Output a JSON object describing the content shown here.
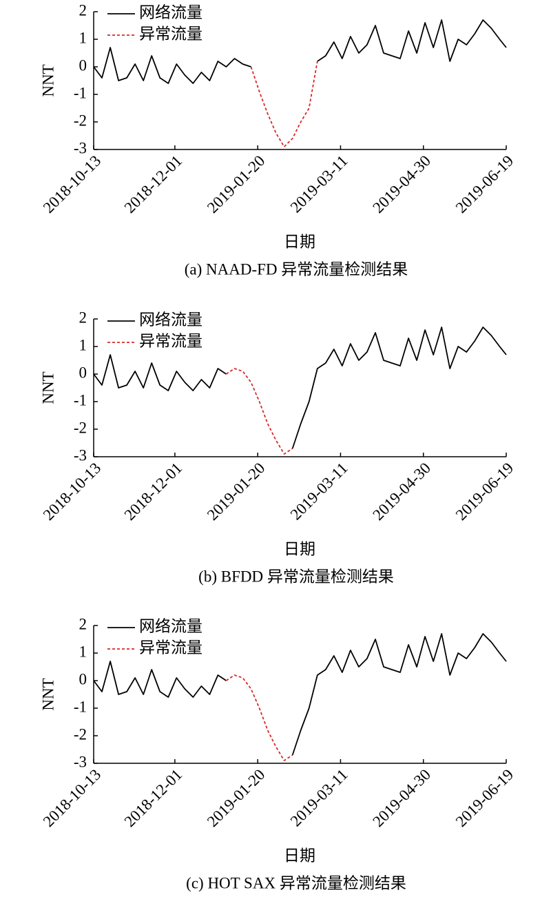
{
  "chart_data": [
    {
      "type": "line",
      "title": "(a) NAAD-FD 异常流量检测结果",
      "xlabel": "日期",
      "ylabel": "NNT",
      "x": [
        "2018-10-13",
        "2018-10-18",
        "2018-10-23",
        "2018-10-28",
        "2018-11-02",
        "2018-11-07",
        "2018-11-12",
        "2018-11-17",
        "2018-11-22",
        "2018-11-27",
        "2018-12-02",
        "2018-12-07",
        "2018-12-12",
        "2018-12-17",
        "2018-12-22",
        "2018-12-27",
        "2019-01-01",
        "2019-01-06",
        "2019-01-11",
        "2019-01-16",
        "2019-01-21",
        "2019-01-26",
        "2019-01-31",
        "2019-02-05",
        "2019-02-10",
        "2019-02-15",
        "2019-02-20",
        "2019-02-25",
        "2019-03-02",
        "2019-03-07",
        "2019-03-12",
        "2019-03-17",
        "2019-03-22",
        "2019-03-27",
        "2019-04-01",
        "2019-04-06",
        "2019-04-11",
        "2019-04-16",
        "2019-04-21",
        "2019-04-26",
        "2019-05-01",
        "2019-05-06",
        "2019-05-11",
        "2019-05-16",
        "2019-05-21",
        "2019-05-26",
        "2019-05-31",
        "2019-06-05",
        "2019-06-10",
        "2019-06-15",
        "2019-06-19"
      ],
      "xlim": [
        "2018-10-13",
        "2019-06-19"
      ],
      "xticks": [
        "2018-10-13",
        "2018-12-01",
        "2019-01-20",
        "2019-03-11",
        "2019-04-30",
        "2019-06-19"
      ],
      "ylim": [
        -3,
        2
      ],
      "yticks": [
        -3,
        -2,
        -1,
        0,
        1,
        2
      ],
      "legend": "upper left",
      "series": [
        {
          "name": "网络流量",
          "color": "#000000",
          "linestyle": "solid",
          "values": [
            0.0,
            -0.4,
            0.7,
            -0.5,
            -0.4,
            0.1,
            -0.5,
            0.4,
            -0.4,
            -0.6,
            0.1,
            -0.3,
            -0.6,
            -0.2,
            -0.5,
            0.2,
            0.0,
            0.3,
            0.1,
            0.0,
            null,
            null,
            null,
            null,
            null,
            null,
            null,
            0.2,
            0.4,
            0.9,
            0.3,
            1.1,
            0.5,
            0.8,
            1.5,
            0.5,
            0.4,
            0.3,
            1.3,
            0.5,
            1.6,
            0.7,
            1.7,
            0.2,
            1.0,
            0.8,
            1.2,
            1.7,
            1.4,
            1.0,
            0.7
          ]
        },
        {
          "name": "异常流量",
          "color": "#d62728",
          "linestyle": "dashed",
          "values": [
            null,
            null,
            null,
            null,
            null,
            null,
            null,
            null,
            null,
            null,
            null,
            null,
            null,
            null,
            null,
            null,
            null,
            null,
            null,
            0.0,
            -0.9,
            -1.7,
            -2.4,
            -2.9,
            -2.6,
            -2.0,
            -1.5,
            0.2,
            null,
            null,
            null,
            null,
            null,
            null,
            null,
            null,
            null,
            null,
            null,
            null,
            null,
            null,
            null,
            null,
            null,
            null,
            null,
            null,
            null,
            null,
            null
          ]
        }
      ]
    },
    {
      "type": "line",
      "title": "(b) BFDD 异常流量检测结果",
      "xlabel": "日期",
      "ylabel": "NNT",
      "x": [
        "2018-10-13",
        "2018-10-18",
        "2018-10-23",
        "2018-10-28",
        "2018-11-02",
        "2018-11-07",
        "2018-11-12",
        "2018-11-17",
        "2018-11-22",
        "2018-11-27",
        "2018-12-02",
        "2018-12-07",
        "2018-12-12",
        "2018-12-17",
        "2018-12-22",
        "2018-12-27",
        "2019-01-01",
        "2019-01-06",
        "2019-01-11",
        "2019-01-16",
        "2019-01-21",
        "2019-01-26",
        "2019-01-31",
        "2019-02-05",
        "2019-02-10",
        "2019-02-15",
        "2019-02-20",
        "2019-02-25",
        "2019-03-02",
        "2019-03-07",
        "2019-03-12",
        "2019-03-17",
        "2019-03-22",
        "2019-03-27",
        "2019-04-01",
        "2019-04-06",
        "2019-04-11",
        "2019-04-16",
        "2019-04-21",
        "2019-04-26",
        "2019-05-01",
        "2019-05-06",
        "2019-05-11",
        "2019-05-16",
        "2019-05-21",
        "2019-05-26",
        "2019-05-31",
        "2019-06-05",
        "2019-06-10",
        "2019-06-15",
        "2019-06-19"
      ],
      "xlim": [
        "2018-10-13",
        "2019-06-19"
      ],
      "xticks": [
        "2018-10-13",
        "2018-12-01",
        "2019-01-20",
        "2019-03-11",
        "2019-04-30",
        "2019-06-19"
      ],
      "ylim": [
        -3,
        2
      ],
      "yticks": [
        -3,
        -2,
        -1,
        0,
        1,
        2
      ],
      "legend": "upper left",
      "series": [
        {
          "name": "网络流量",
          "color": "#000000",
          "linestyle": "solid",
          "values": [
            0.0,
            -0.4,
            0.7,
            -0.5,
            -0.4,
            0.1,
            -0.5,
            0.4,
            -0.4,
            -0.6,
            0.1,
            -0.3,
            -0.6,
            -0.2,
            -0.5,
            0.2,
            0.0,
            null,
            null,
            null,
            null,
            null,
            null,
            null,
            -2.7,
            -1.8,
            -1.0,
            0.2,
            0.4,
            0.9,
            0.3,
            1.1,
            0.5,
            0.8,
            1.5,
            0.5,
            0.4,
            0.3,
            1.3,
            0.5,
            1.6,
            0.7,
            1.7,
            0.2,
            1.0,
            0.8,
            1.2,
            1.7,
            1.4,
            1.0,
            0.7
          ]
        },
        {
          "name": "异常流量",
          "color": "#d62728",
          "linestyle": "dashed",
          "values": [
            null,
            null,
            null,
            null,
            null,
            null,
            null,
            null,
            null,
            null,
            null,
            null,
            null,
            null,
            null,
            null,
            0.0,
            0.2,
            0.1,
            -0.3,
            -1.0,
            -1.8,
            -2.4,
            -2.9,
            -2.7,
            null,
            null,
            null,
            null,
            null,
            null,
            null,
            null,
            null,
            null,
            null,
            null,
            null,
            null,
            null,
            null,
            null,
            null,
            null,
            null,
            null,
            null,
            null,
            null,
            null,
            null
          ]
        }
      ]
    },
    {
      "type": "line",
      "title": "(c) HOT SAX 异常流量检测结果",
      "xlabel": "日期",
      "ylabel": "NNT",
      "x": [
        "2018-10-13",
        "2018-10-18",
        "2018-10-23",
        "2018-10-28",
        "2018-11-02",
        "2018-11-07",
        "2018-11-12",
        "2018-11-17",
        "2018-11-22",
        "2018-11-27",
        "2018-12-02",
        "2018-12-07",
        "2018-12-12",
        "2018-12-17",
        "2018-12-22",
        "2018-12-27",
        "2019-01-01",
        "2019-01-06",
        "2019-01-11",
        "2019-01-16",
        "2019-01-21",
        "2019-01-26",
        "2019-01-31",
        "2019-02-05",
        "2019-02-10",
        "2019-02-15",
        "2019-02-20",
        "2019-02-25",
        "2019-03-02",
        "2019-03-07",
        "2019-03-12",
        "2019-03-17",
        "2019-03-22",
        "2019-03-27",
        "2019-04-01",
        "2019-04-06",
        "2019-04-11",
        "2019-04-16",
        "2019-04-21",
        "2019-04-26",
        "2019-05-01",
        "2019-05-06",
        "2019-05-11",
        "2019-05-16",
        "2019-05-21",
        "2019-05-26",
        "2019-05-31",
        "2019-06-05",
        "2019-06-10",
        "2019-06-15",
        "2019-06-19"
      ],
      "xlim": [
        "2018-10-13",
        "2019-06-19"
      ],
      "xticks": [
        "2018-10-13",
        "2018-12-01",
        "2019-01-20",
        "2019-03-11",
        "2019-04-30",
        "2019-06-19"
      ],
      "ylim": [
        -3,
        2
      ],
      "yticks": [
        -3,
        -2,
        -1,
        0,
        1,
        2
      ],
      "legend": "upper left",
      "series": [
        {
          "name": "网络流量",
          "color": "#000000",
          "linestyle": "solid",
          "values": [
            0.0,
            -0.4,
            0.7,
            -0.5,
            -0.4,
            0.1,
            -0.5,
            0.4,
            -0.4,
            -0.6,
            0.1,
            -0.3,
            -0.6,
            -0.2,
            -0.5,
            0.2,
            0.0,
            null,
            null,
            null,
            null,
            null,
            null,
            null,
            -2.7,
            -1.8,
            -1.0,
            0.2,
            0.4,
            0.9,
            0.3,
            1.1,
            0.5,
            0.8,
            1.5,
            0.5,
            0.4,
            0.3,
            1.3,
            0.5,
            1.6,
            0.7,
            1.7,
            0.2,
            1.0,
            0.8,
            1.2,
            1.7,
            1.4,
            1.0,
            0.7
          ]
        },
        {
          "name": "异常流量",
          "color": "#d62728",
          "linestyle": "dashed",
          "values": [
            null,
            null,
            null,
            null,
            null,
            null,
            null,
            null,
            null,
            null,
            null,
            null,
            null,
            null,
            null,
            null,
            0.0,
            0.2,
            0.1,
            -0.3,
            -1.0,
            -1.8,
            -2.4,
            -2.9,
            -2.7,
            null,
            null,
            null,
            null,
            null,
            null,
            null,
            null,
            null,
            null,
            null,
            null,
            null,
            null,
            null,
            null,
            null,
            null,
            null,
            null,
            null,
            null,
            null,
            null,
            null,
            null
          ]
        }
      ]
    }
  ]
}
